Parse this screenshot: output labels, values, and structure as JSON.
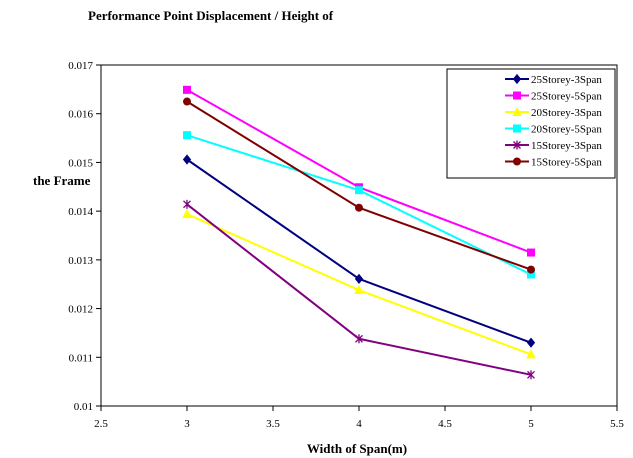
{
  "chart_data": {
    "type": "line",
    "title": "Performance Point Displacement / Height of",
    "ylabel": "the Frame",
    "xlabel": "Width of Span(m)",
    "xlim": [
      2.5,
      5.5
    ],
    "ylim": [
      0.01,
      0.017
    ],
    "xticks": [
      2.5,
      3,
      3.5,
      4,
      4.5,
      5,
      5.5
    ],
    "yticks": [
      0.01,
      0.011,
      0.012,
      0.013,
      0.014,
      0.015,
      0.016,
      0.017
    ],
    "x_tick_labels": [
      "2.5",
      "3",
      "3.5",
      "4",
      "4.5",
      "5",
      "5.5"
    ],
    "y_tick_labels": [
      "0.01",
      "0.011",
      "0.012",
      "0.013",
      "0.014",
      "0.015",
      "0.016",
      "0.017"
    ],
    "grid": false,
    "legend_position": "top-right",
    "x": [
      3,
      4,
      5
    ],
    "series": [
      {
        "name": "25Storey-3Span",
        "color": "#000080",
        "marker": "diamond",
        "values": [
          0.01506,
          0.01261,
          0.0113
        ]
      },
      {
        "name": "25Storey-5Span",
        "color": "#FF00FF",
        "marker": "square",
        "values": [
          0.01649,
          0.01449,
          0.01315
        ]
      },
      {
        "name": "20Storey-3Span",
        "color": "#FFFF00",
        "marker": "triangle",
        "values": [
          0.01394,
          0.01238,
          0.01106
        ]
      },
      {
        "name": "20Storey-5Span",
        "color": "#00FFFF",
        "marker": "square",
        "values": [
          0.01556,
          0.01443,
          0.0127
        ]
      },
      {
        "name": "15Storey-3Span",
        "color": "#800080",
        "marker": "star",
        "values": [
          0.01414,
          0.01138,
          0.01064
        ]
      },
      {
        "name": "15Storey-5Span",
        "color": "#800000",
        "marker": "circle",
        "values": [
          0.01625,
          0.01407,
          0.0128
        ]
      }
    ]
  }
}
